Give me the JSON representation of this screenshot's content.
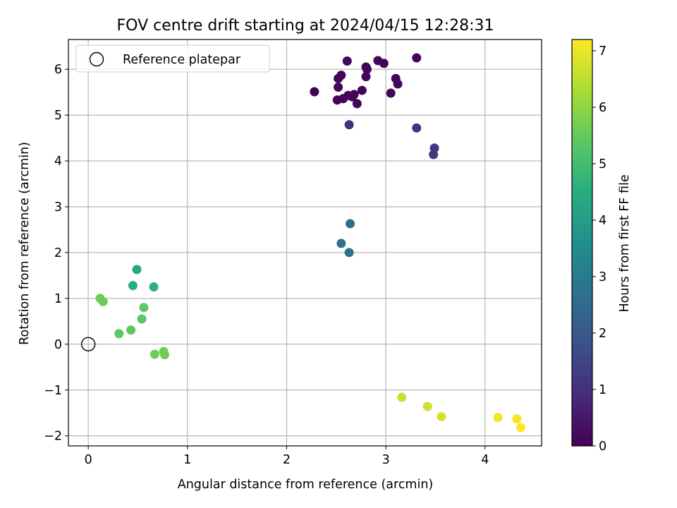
{
  "chart_data": {
    "type": "scatter",
    "title": "FOV centre drift starting at 2024/04/15 12:28:31",
    "xlabel": "Angular distance from reference (arcmin)",
    "ylabel": "Rotation from reference (arcmin)",
    "xlim": [
      -0.2,
      4.57
    ],
    "ylim": [
      -2.22,
      6.65
    ],
    "xticks": [
      0,
      1,
      2,
      3,
      4
    ],
    "yticks": [
      -2,
      -1,
      0,
      1,
      2,
      3,
      4,
      5,
      6
    ],
    "xtick_labels": [
      "0",
      "1",
      "2",
      "3",
      "4"
    ],
    "ytick_labels": [
      "−2",
      "−1",
      "0",
      "1",
      "2",
      "3",
      "4",
      "5",
      "6"
    ],
    "grid": true,
    "legend_position": "top-left",
    "legend_label": "Reference platepar",
    "reference_point": {
      "x": 0,
      "y": 0
    },
    "colorbar": {
      "label": "Hours from first FF file",
      "range": [
        0,
        7.2
      ],
      "ticks": [
        0,
        1,
        2,
        3,
        4,
        5,
        6,
        7
      ],
      "tick_labels": [
        "0",
        "1",
        "2",
        "3",
        "4",
        "5",
        "6",
        "7"
      ],
      "colormap": "viridis"
    },
    "points": [
      {
        "x": 2.28,
        "y": 5.51,
        "hours": 0.05
      },
      {
        "x": 2.52,
        "y": 5.8,
        "hours": 0.1
      },
      {
        "x": 2.55,
        "y": 5.87,
        "hours": 0.1
      },
      {
        "x": 2.61,
        "y": 6.18,
        "hours": 0.1
      },
      {
        "x": 2.52,
        "y": 5.61,
        "hours": 0.1
      },
      {
        "x": 2.51,
        "y": 5.33,
        "hours": 0.1
      },
      {
        "x": 2.57,
        "y": 5.36,
        "hours": 0.1
      },
      {
        "x": 2.62,
        "y": 5.43,
        "hours": 0.1
      },
      {
        "x": 2.66,
        "y": 5.4,
        "hours": 0.1
      },
      {
        "x": 2.68,
        "y": 5.45,
        "hours": 0.1
      },
      {
        "x": 2.71,
        "y": 5.25,
        "hours": 0.1
      },
      {
        "x": 2.76,
        "y": 5.54,
        "hours": 0.1
      },
      {
        "x": 2.8,
        "y": 6.05,
        "hours": 0.1
      },
      {
        "x": 2.81,
        "y": 6.0,
        "hours": 0.1
      },
      {
        "x": 2.8,
        "y": 5.84,
        "hours": 0.1
      },
      {
        "x": 2.92,
        "y": 6.19,
        "hours": 0.1
      },
      {
        "x": 2.98,
        "y": 6.13,
        "hours": 0.1
      },
      {
        "x": 3.05,
        "y": 5.48,
        "hours": 0.1
      },
      {
        "x": 3.1,
        "y": 5.8,
        "hours": 0.1
      },
      {
        "x": 3.12,
        "y": 5.68,
        "hours": 0.1
      },
      {
        "x": 3.31,
        "y": 6.25,
        "hours": 0.1
      },
      {
        "x": 2.63,
        "y": 4.79,
        "hours": 1.0
      },
      {
        "x": 3.31,
        "y": 4.72,
        "hours": 1.1
      },
      {
        "x": 3.49,
        "y": 4.28,
        "hours": 1.2
      },
      {
        "x": 3.48,
        "y": 4.14,
        "hours": 1.2
      },
      {
        "x": 2.64,
        "y": 2.63,
        "hours": 2.6
      },
      {
        "x": 2.55,
        "y": 2.2,
        "hours": 2.7
      },
      {
        "x": 2.63,
        "y": 2.0,
        "hours": 2.7
      },
      {
        "x": 0.49,
        "y": 1.63,
        "hours": 4.4
      },
      {
        "x": 0.45,
        "y": 1.28,
        "hours": 4.5
      },
      {
        "x": 0.66,
        "y": 1.25,
        "hours": 4.6
      },
      {
        "x": 0.12,
        "y": 1.0,
        "hours": 5.6
      },
      {
        "x": 0.15,
        "y": 0.93,
        "hours": 5.6
      },
      {
        "x": 0.56,
        "y": 0.8,
        "hours": 5.4
      },
      {
        "x": 0.54,
        "y": 0.55,
        "hours": 5.4
      },
      {
        "x": 0.31,
        "y": 0.23,
        "hours": 5.4
      },
      {
        "x": 0.43,
        "y": 0.31,
        "hours": 5.4
      },
      {
        "x": 0.67,
        "y": -0.22,
        "hours": 5.6
      },
      {
        "x": 0.76,
        "y": -0.16,
        "hours": 5.6
      },
      {
        "x": 0.77,
        "y": -0.23,
        "hours": 5.6
      },
      {
        "x": 3.16,
        "y": -1.16,
        "hours": 6.6
      },
      {
        "x": 3.42,
        "y": -1.36,
        "hours": 6.7
      },
      {
        "x": 3.56,
        "y": -1.58,
        "hours": 6.8
      },
      {
        "x": 4.13,
        "y": -1.6,
        "hours": 7.1
      },
      {
        "x": 4.32,
        "y": -1.63,
        "hours": 7.15
      },
      {
        "x": 4.36,
        "y": -1.82,
        "hours": 7.2
      }
    ]
  }
}
